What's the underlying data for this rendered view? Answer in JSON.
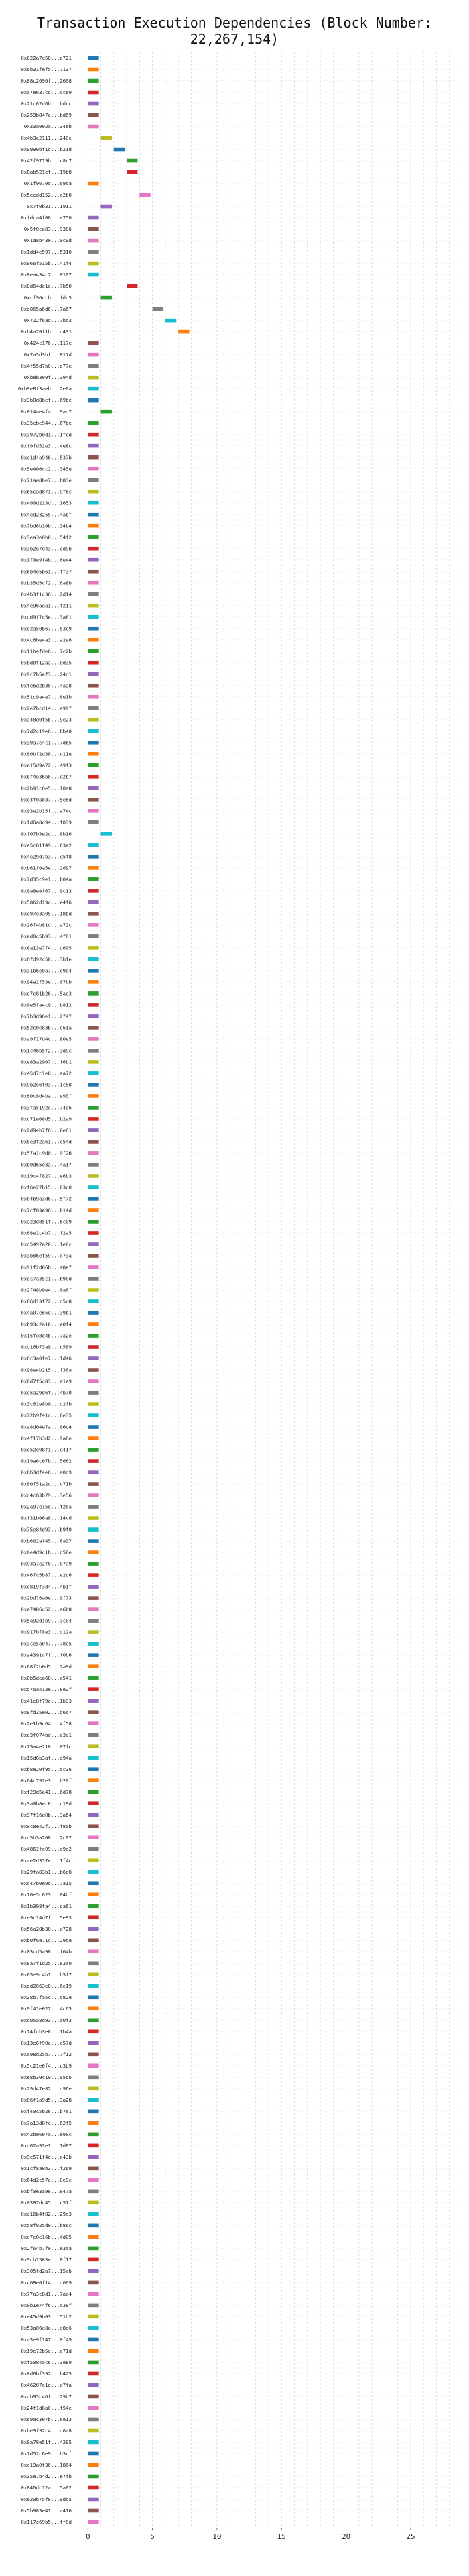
{
  "chart_data": {
    "type": "bar",
    "orientation": "horizontal",
    "title": "Transaction Execution Dependencies (Block Number: 22,267,154)",
    "xlabel": "",
    "ylabel": "",
    "xlim": [
      -1,
      29
    ],
    "xticks": [
      0,
      5,
      10,
      15,
      20,
      25
    ],
    "grid": true,
    "palette": [
      "#1f77b4",
      "#ff7f0e",
      "#2ca02c",
      "#d62728",
      "#9467bd",
      "#8c564b",
      "#e377c2",
      "#7f7f7f",
      "#bcbd22",
      "#17becf"
    ],
    "categories": [
      "0x022a7c58...d721",
      "0x6b31fef5...7137",
      "0x88c2696f...2608",
      "0xa7e637cd...cce9",
      "0x21c62d6b...bdcc",
      "0x259b847a...bd69",
      "0x33a002a...34eb",
      "0x4b3e2111...240e",
      "0x9999bf1d...b21d",
      "0x42f9719b...c8c7",
      "0x8ab521ef...19b8",
      "0x1f9670d...69ca",
      "0x5ecdd152...c2b0",
      "0x7f0b31...1911",
      "0xfdca4f06...e750",
      "0x5f0ca83...9386",
      "0x1a8b430...0c9d",
      "0x1dd4e597...5310",
      "0x966f515b...41f4",
      "0x8ea434c7...0107",
      "0x8d64de1e...7b50",
      "0xcf96ccb...fdd5",
      "0xe065a6d6...7a67",
      "0x722f6ad...7bd3",
      "0xb4a70f1b...d431",
      "0x424c176...117e",
      "0x7a5d3bf...817d",
      "0x4f55d7b0...d77e",
      "0xbeb309f...394d",
      "0xb9e8f3aeb...2e0a",
      "0x3b8d8bef...69be",
      "0x014ae4fa...9ad7",
      "0x35cbe944...67be",
      "0x3972b0d1...1fcd",
      "0xf9fd52e3...4e8c",
      "0xc1d4a946...537b",
      "0x5e406cc2...345e",
      "0x71aa8be7...b83e",
      "0x65cad871...9f6c",
      "0x490d213d...1653",
      "0x4ed23255...4abf",
      "0x7bd6b10b...34b4",
      "0x3ea3e0b0...54f2",
      "0x3b2e7d43...cd9b",
      "0x1f0e9f4b...6e44",
      "0x6b4e5b61...ff37",
      "0xb35d5cf2...6a8b",
      "0x4b3f1c36...2d14",
      "0x4e96aea1...f211",
      "0xdd9f7c5e...3a81",
      "0xe2a50b67...53c9",
      "0x4c6be4a3...a2e6",
      "0x11b4fde6...7c2b",
      "0x8d0f12aa...0d35",
      "0x9c7b5ef3...24d1",
      "0xfe6d2b30...4aa8",
      "0x51c9a4e7...6e1b",
      "0x2e7bcd14...a99f",
      "0xa48d0f5b...9e23",
      "0x7d2c19e6...bb40",
      "0x39a7e4c1...7d65",
      "0x60bf2d38...c11e",
      "0xe15d9a72...49f3",
      "0x8f4e36b0...d2b7",
      "0x2b91c6e5...10a8",
      "0xc4f0a837...5e6d",
      "0x93e2b15f...a74c",
      "0x1d6a8c94...f039",
      "0xf07b3e2d...8b16",
      "0xa5c81f49...63e2",
      "0x4e29d7b3...c5f8",
      "0xb61f0a5e...2d97",
      "0x7d35c9e1...b04a",
      "0x0a8e4f67...9c13",
      "0x58b2d19c...e4f6",
      "0xc97e3a05...18bd",
      "0x26f4b81d...a72c",
      "0xed0c5b93...4f81",
      "0x8a13e7f4...d605",
      "0x6fd92c58...3b1e",
      "0x31b6e0a7...c9d4",
      "0x94a2f53e...07bb",
      "0xd7c81b26...5ae3",
      "0x0e5fa4c9...b812",
      "0x7b3d96e1...2f47",
      "0x52c0e83b...d61a",
      "0xa9f17d4c...80e5",
      "0x1c46b5f2...3d9c",
      "0xe83a2907...f6b1",
      "0x45d7c1e8...aa72",
      "0x9b2e6f03...1c58",
      "0x60c8d4ba...e93f",
      "0x3fa5192e...74d6",
      "0xc71e08d5...b2a9",
      "0x2d94b7f6...0e81",
      "0x8e3f2a61...c54d",
      "0x57a1c9d0...9f26",
      "0xb0d65e3a...4a17",
      "0x19c4f827...e6b3",
      "0xf6e27b15...83c0",
      "0x04b9a3d8...5f72",
      "0x7cf03e96...b14d",
      "0xa23d851f...6c09",
      "0x68e1c4b7...f2a5",
      "0xd5497a20...1e8c",
      "0x3b86ef59...c73a",
      "0x91f2d06b...48e7",
      "0xec7a35c1...b90d",
      "0x2f48b9e4...0a6f",
      "0x86d13f72...d5c8",
      "0x4a07e65d...39b1",
      "0xb93c2a18...e0f4",
      "0x15fe8d4b...7a2e",
      "0xd16b73a9...c589",
      "0x6c3a0fe7...1d46",
      "0x98e4b215...f36a",
      "0x0d7f5c83...a1e9",
      "0xe5a29d6f...4b70",
      "0x3c61e8b0...d2fb",
      "0x72b9f41c...8e35",
      "0xa8d04e7a...06c4",
      "0x4f17b3d2...9a8e",
      "0xc52e98f1...e417",
      "0x19a6c07b...5d62",
      "0x8b3df4e6...a0d9",
      "0x60f51a2c...c71b",
      "0xd4c83b79...3e56",
      "0x2a97e15d...f28a",
      "0xf31b06a8...14cd",
      "0x75e84d93...b9f0",
      "0xb602af45...6a37",
      "0x0e4d9c1b...d58e",
      "0x93a7e2f0...07a9",
      "0x46fc5b87...e2c6",
      "0xc819f3d4...4b1f",
      "0x2bd76a0e...9f73",
      "0xe7406c52...a6b8",
      "0x5a92d1b9...3c04",
      "0x917bf8e3...d12a",
      "0x3ce5a047...78e5",
      "0xa4391c7f...f0b6",
      "0x68f2b0d5...2a9d",
      "0x0b5dea68...c541",
      "0xd76a413e...8e2f",
      "0x41c8f79a...1b93",
      "0x8fd35e02...d6c7",
      "0x2e1b9c64...4f58",
      "0xc3f074bd...a3e1",
      "0x79a4e218...07fc",
      "0x15d6b3af...e94a",
      "0xb8e20f95...5c36",
      "0x64c791e3...b20f",
      "0xf29d5a41...6d78",
      "0x3a0b8ec6...c19d",
      "0x97f16d0b...3a64",
      "0x0c8e42f7...f85b",
      "0xd5b3a768...2c07",
      "0x4861fc09...e9a2",
      "0xae2d357e...1f4c",
      "0x29fa83b1...b6d8",
      "0xc47b0e9d...7a15",
      "0x70e5c623...04bf",
      "0x1b398fa4...da61",
      "0xe9c14d7f...5e93",
      "0x56a28b30...c728",
      "0xb0f6e71c...29de",
      "0x03cd5a98...f64b",
      "0x8a7f1d25...83a0",
      "0x65e9c4b1...b5f7",
      "0xdd2063e8...6e19",
      "0x38b7fa5c...d82e",
      "0x9f41e027...4c65",
      "0xc05a8d93...a0f3",
      "0x74fcb3e6...1b4a",
      "0x13e6f90a...e57d",
      "0xa98d25b7...7f12",
      "0x5c21e6f4...c3b9",
      "0xe8b30c19...05d6",
      "0x29d47e82...d96e",
      "0x86f1a9d5...3a28",
      "0xf40c5b26...b7e1",
      "0x7a13d8fc...62f5",
      "0x42be607a...e90c",
      "0xd02a93e1...1d87",
      "0x9e571f4d...a43b",
      "0x1cf8a0b3...f269",
      "0x64d2c57e...0e9c",
      "0xbf0e3a98...847a",
      "0x0397dc45...c51f",
      "0xe16b4f82...29e3",
      "0x58f925d0...b86c",
      "0xa7c0e16b...4d05",
      "0x2f64b7f9...e3aa",
      "0x9cb1583e...8f17",
      "0x305fd2a7...15cb",
      "0xc68e0f14...d069",
      "0x77a3c8d1...7ae4",
      "0x0b1e74f6...c38f",
      "0xe45d9b03...51b2",
      "0x53a06e8a...e8d6",
      "0xa3e9f147...0f49",
      "0x19c72b5e...a71d",
      "0xf5084ac6...3e80",
      "0x8d6bf392...b425",
      "0x46207e1d...c7fa",
      "0xdb95c46f...29b7",
      "0x24f1d8a0...f54e",
      "0x69ac307b...6e13",
      "0xbe3f92c4...d0a8",
      "0x0a78e51f...4295",
      "0x7d52c6e9...b3cf",
      "0xc19a0f36...1864",
      "0x35e7b4d2...e7fb",
      "0x846dc12a...5a02",
      "0xe20b75f8...9dc5",
      "0x5b983e41...a416",
      "0x117c69b5...ff8d"
    ],
    "starts": [
      0,
      0,
      0,
      0,
      0,
      0,
      0,
      1,
      2,
      3,
      3,
      0,
      4,
      1,
      0,
      0,
      0,
      0,
      0,
      0,
      3,
      1,
      5,
      6,
      7,
      0,
      0,
      0,
      0,
      0,
      0,
      1,
      0,
      0,
      0,
      0,
      0,
      0,
      0,
      0,
      0,
      0,
      0,
      0,
      0,
      0,
      0,
      0,
      0,
      0,
      0,
      0,
      0,
      0,
      0,
      0,
      0,
      0,
      0,
      0,
      0,
      0,
      0,
      0,
      0,
      0,
      0,
      0,
      1,
      0,
      0,
      0,
      0,
      0,
      0,
      0,
      0,
      0,
      0,
      0,
      0,
      0,
      0,
      0,
      0,
      0,
      0,
      0,
      0,
      0,
      0,
      0,
      0,
      0,
      0,
      0,
      0,
      0,
      0,
      0,
      0,
      0,
      0,
      0,
      0,
      0,
      0,
      0,
      0,
      0,
      0,
      0,
      0,
      0,
      0,
      0,
      0,
      0,
      0,
      0,
      0,
      0,
      0,
      0,
      0,
      0,
      0,
      0,
      0,
      0,
      0,
      0,
      0,
      0,
      0,
      0,
      0,
      0,
      0,
      0,
      0,
      0,
      0,
      0,
      0,
      0,
      0,
      0,
      0,
      0,
      0,
      0,
      0,
      0,
      0,
      0,
      0,
      0,
      0,
      0,
      0,
      0,
      0,
      0,
      0,
      0,
      0,
      0,
      0,
      0,
      0,
      0,
      0,
      0,
      0,
      0,
      0,
      0,
      0,
      0,
      0,
      0,
      0,
      0,
      0,
      0,
      0,
      0,
      0,
      0,
      0,
      0,
      0,
      0,
      0,
      0,
      0,
      0,
      0,
      0,
      0,
      0,
      0,
      0,
      0,
      0,
      0
    ],
    "colors": []
  }
}
